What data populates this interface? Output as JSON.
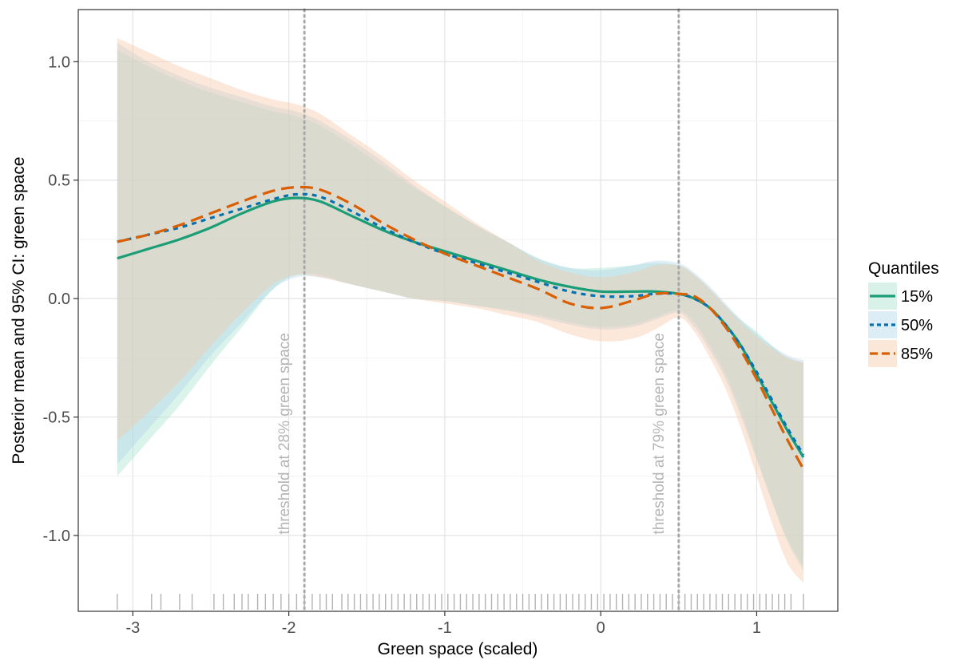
{
  "chart_data": {
    "type": "line",
    "xlabel": "Green space (scaled)",
    "ylabel": "Posterior mean and 95% CI: green space",
    "xlim": [
      -3.35,
      1.52
    ],
    "ylim": [
      -1.32,
      1.22
    ],
    "x_ticks": [
      -3,
      -2,
      -1,
      0,
      1
    ],
    "x_tick_labels": [
      "-3",
      "-2",
      "-1",
      "0",
      "1"
    ],
    "y_ticks": [
      1.0,
      0.5,
      0.0,
      -0.5,
      -1.0
    ],
    "y_tick_labels": [
      "1.0",
      "0.5",
      "0.0",
      "-0.5",
      "-1.0"
    ],
    "grid": true,
    "legend": {
      "title": "Quantiles",
      "position": "right",
      "items": [
        "15%",
        "50%",
        "85%"
      ]
    },
    "series": [
      {
        "name": "15%",
        "color": "#1b9e77",
        "linestyle": "solid",
        "x": [
          -3.1,
          -2.9,
          -2.7,
          -2.5,
          -2.3,
          -2.1,
          -1.95,
          -1.8,
          -1.6,
          -1.4,
          -1.2,
          -1.0,
          -0.8,
          -0.6,
          -0.4,
          -0.2,
          0.0,
          0.2,
          0.35,
          0.5,
          0.6,
          0.7,
          0.8,
          0.9,
          1.0,
          1.1,
          1.2,
          1.3
        ],
        "y": [
          0.17,
          0.21,
          0.25,
          0.3,
          0.36,
          0.41,
          0.425,
          0.41,
          0.35,
          0.29,
          0.24,
          0.2,
          0.16,
          0.12,
          0.08,
          0.05,
          0.03,
          0.03,
          0.03,
          0.02,
          0.0,
          -0.04,
          -0.11,
          -0.2,
          -0.32,
          -0.44,
          -0.56,
          -0.67
        ],
        "lower": [
          -0.75,
          -0.6,
          -0.45,
          -0.28,
          -0.12,
          0.04,
          0.1,
          0.1,
          0.06,
          0.03,
          0.0,
          -0.01,
          -0.03,
          -0.05,
          -0.07,
          -0.1,
          -0.12,
          -0.11,
          -0.08,
          -0.05,
          -0.1,
          -0.2,
          -0.32,
          -0.48,
          -0.67,
          -0.86,
          -1.03,
          -1.15
        ],
        "upper": [
          1.05,
          0.98,
          0.92,
          0.87,
          0.83,
          0.79,
          0.77,
          0.73,
          0.65,
          0.56,
          0.47,
          0.39,
          0.31,
          0.24,
          0.17,
          0.13,
          0.13,
          0.14,
          0.15,
          0.14,
          0.1,
          0.04,
          -0.03,
          -0.09,
          -0.14,
          -0.2,
          -0.25,
          -0.27
        ]
      },
      {
        "name": "50%",
        "color": "#0571b0",
        "linestyle": "dotted",
        "x": [
          -3.1,
          -2.9,
          -2.7,
          -2.5,
          -2.3,
          -2.1,
          -1.95,
          -1.8,
          -1.6,
          -1.4,
          -1.2,
          -1.0,
          -0.8,
          -0.6,
          -0.4,
          -0.2,
          0.0,
          0.2,
          0.35,
          0.5,
          0.6,
          0.7,
          0.8,
          0.9,
          1.0,
          1.1,
          1.2,
          1.3
        ],
        "y": [
          0.24,
          0.27,
          0.3,
          0.34,
          0.38,
          0.42,
          0.44,
          0.43,
          0.37,
          0.3,
          0.24,
          0.19,
          0.15,
          0.11,
          0.07,
          0.03,
          0.01,
          0.01,
          0.02,
          0.02,
          0.0,
          -0.04,
          -0.11,
          -0.2,
          -0.31,
          -0.43,
          -0.55,
          -0.66
        ],
        "lower": [
          -0.7,
          -0.55,
          -0.4,
          -0.24,
          -0.1,
          0.04,
          0.09,
          0.09,
          0.06,
          0.03,
          0.0,
          -0.01,
          -0.03,
          -0.05,
          -0.08,
          -0.11,
          -0.13,
          -0.12,
          -0.09,
          -0.06,
          -0.12,
          -0.22,
          -0.34,
          -0.5,
          -0.68,
          -0.86,
          -1.02,
          -1.13
        ],
        "upper": [
          1.08,
          1.0,
          0.94,
          0.89,
          0.85,
          0.81,
          0.79,
          0.75,
          0.67,
          0.58,
          0.48,
          0.39,
          0.31,
          0.24,
          0.17,
          0.13,
          0.12,
          0.14,
          0.16,
          0.15,
          0.11,
          0.05,
          -0.02,
          -0.09,
          -0.15,
          -0.2,
          -0.24,
          -0.26
        ]
      },
      {
        "name": "85%",
        "color": "#d95f02",
        "linestyle": "dashed",
        "x": [
          -3.1,
          -2.9,
          -2.7,
          -2.5,
          -2.3,
          -2.1,
          -1.95,
          -1.8,
          -1.6,
          -1.4,
          -1.2,
          -1.0,
          -0.8,
          -0.6,
          -0.4,
          -0.2,
          0.0,
          0.2,
          0.35,
          0.5,
          0.6,
          0.7,
          0.8,
          0.9,
          1.0,
          1.1,
          1.2,
          1.3
        ],
        "y": [
          0.24,
          0.27,
          0.31,
          0.36,
          0.41,
          0.455,
          0.47,
          0.46,
          0.4,
          0.32,
          0.25,
          0.19,
          0.14,
          0.09,
          0.04,
          -0.02,
          -0.04,
          -0.01,
          0.02,
          0.02,
          0.01,
          -0.04,
          -0.12,
          -0.22,
          -0.34,
          -0.47,
          -0.6,
          -0.72
        ],
        "lower": [
          -0.6,
          -0.48,
          -0.35,
          -0.2,
          -0.06,
          0.06,
          0.1,
          0.09,
          0.06,
          0.03,
          0.0,
          -0.02,
          -0.04,
          -0.07,
          -0.1,
          -0.15,
          -0.18,
          -0.17,
          -0.13,
          -0.08,
          -0.14,
          -0.25,
          -0.38,
          -0.55,
          -0.75,
          -0.95,
          -1.12,
          -1.2
        ],
        "upper": [
          1.1,
          1.04,
          0.98,
          0.93,
          0.88,
          0.84,
          0.82,
          0.78,
          0.69,
          0.6,
          0.5,
          0.41,
          0.32,
          0.24,
          0.16,
          0.11,
          0.09,
          0.11,
          0.14,
          0.14,
          0.1,
          0.04,
          -0.03,
          -0.1,
          -0.16,
          -0.21,
          -0.25,
          -0.27
        ]
      }
    ],
    "vlines": [
      {
        "x": -1.9,
        "label": "threshold at 28% green space"
      },
      {
        "x": 0.5,
        "label": "threshold at 79% green space"
      }
    ],
    "rug": [
      -3.1,
      -2.88,
      -2.82,
      -2.7,
      -2.62,
      -2.48,
      -2.42,
      -2.35,
      -2.3,
      -2.26,
      -2.2,
      -2.15,
      -2.1,
      -2.05,
      -2.0,
      -1.95,
      -1.9,
      -1.85,
      -1.8,
      -1.76,
      -1.72,
      -1.66,
      -1.62,
      -1.58,
      -1.54,
      -1.5,
      -1.46,
      -1.42,
      -1.38,
      -1.34,
      -1.3,
      -1.26,
      -1.22,
      -1.18,
      -1.14,
      -1.1,
      -1.06,
      -1.02,
      -0.98,
      -0.94,
      -0.9,
      -0.86,
      -0.82,
      -0.78,
      -0.74,
      -0.7,
      -0.66,
      -0.62,
      -0.58,
      -0.54,
      -0.5,
      -0.46,
      -0.42,
      -0.38,
      -0.34,
      -0.3,
      -0.26,
      -0.22,
      -0.18,
      -0.14,
      -0.1,
      -0.06,
      -0.02,
      0.02,
      0.06,
      0.1,
      0.14,
      0.18,
      0.22,
      0.26,
      0.3,
      0.34,
      0.38,
      0.42,
      0.46,
      0.5,
      0.54,
      0.58,
      0.62,
      0.66,
      0.7,
      0.74,
      0.78,
      0.82,
      0.86,
      0.9,
      0.94,
      0.98,
      1.02,
      1.06,
      1.1,
      1.14,
      1.18,
      1.22,
      1.3
    ]
  }
}
